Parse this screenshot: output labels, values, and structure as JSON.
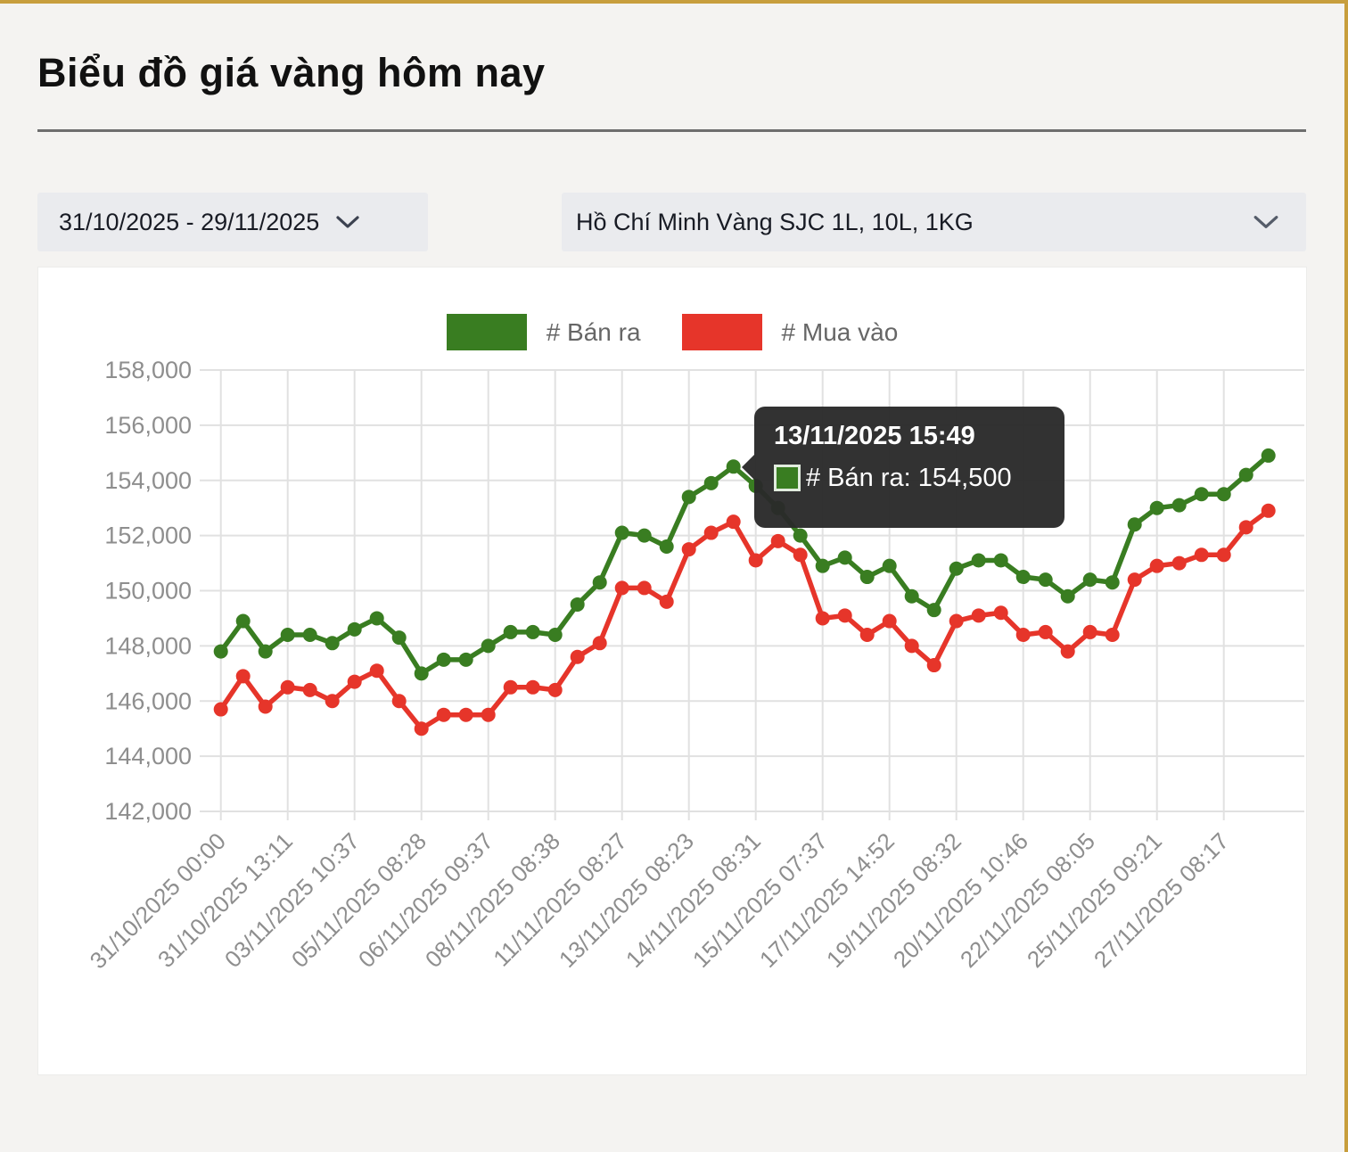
{
  "page": {
    "title": "Biểu đồ giá vàng hôm nay"
  },
  "controls": {
    "date_range": {
      "value": "31/10/2025 - 29/11/2025"
    },
    "market": {
      "value": "Hồ Chí Minh Vàng SJC 1L, 10L, 1KG"
    }
  },
  "chart_data": {
    "type": "line",
    "x_tick_labels": [
      "31/10/2025 00:00",
      "31/10/2025 13:11",
      "03/11/2025 10:37",
      "05/11/2025 08:28",
      "06/11/2025 09:37",
      "08/11/2025 08:38",
      "11/11/2025 08:27",
      "13/11/2025 08:23",
      "14/11/2025 08:31",
      "15/11/2025 07:37",
      "17/11/2025 14:52",
      "19/11/2025 08:32",
      "20/11/2025 10:46",
      "22/11/2025 08:05",
      "25/11/2025 09:21",
      "27/11/2025 08:17"
    ],
    "points_per_tick": 3,
    "ylim": [
      142000,
      158000
    ],
    "y_tick_step": 2000,
    "grid": true,
    "legend_position": "top",
    "series": [
      {
        "name": "# Bán ra",
        "key": "ban-ra",
        "color": "#397d21",
        "values": [
          147800,
          148900,
          147800,
          148400,
          148400,
          148100,
          148600,
          149000,
          148300,
          147000,
          147500,
          147500,
          148000,
          148500,
          148500,
          148400,
          149500,
          150300,
          152100,
          152000,
          151600,
          153400,
          153900,
          154500,
          153800,
          153000,
          152000,
          150900,
          151200,
          150500,
          150900,
          149800,
          149300,
          150800,
          151100,
          151100,
          150500,
          150400,
          149800,
          150400,
          150300,
          152400,
          153000,
          153100,
          153500,
          153500,
          154200,
          154900
        ]
      },
      {
        "name": "# Mua vào",
        "key": "mua-vao",
        "color": "#e6352a",
        "values": [
          145700,
          146900,
          145800,
          146500,
          146400,
          146000,
          146700,
          147100,
          146000,
          145000,
          145500,
          145500,
          145500,
          146500,
          146500,
          146400,
          147600,
          148100,
          150100,
          150100,
          149600,
          151500,
          152100,
          152500,
          151100,
          151800,
          151300,
          149000,
          149100,
          148400,
          148900,
          148000,
          147300,
          148900,
          149100,
          149200,
          148400,
          148500,
          147800,
          148500,
          148400,
          150400,
          150900,
          151000,
          151300,
          151300,
          152300,
          152900
        ]
      }
    ]
  },
  "tooltip": {
    "title": "13/11/2025 15:49",
    "series": "# Bán ra",
    "value": "154,500",
    "label": "# Bán ra: 154,500"
  },
  "colors": {
    "accent_gold": "#c79e3d",
    "green": "#397d21",
    "red": "#e6352a",
    "grid": "#e1e1e1",
    "tick_text": "#8e8e8e",
    "legend_text": "#666666",
    "tooltip_bg": "#2a2a2a",
    "select_bg": "#eaebee",
    "page_bg": "#f4f3f1",
    "panel_bg": "#ffffff"
  }
}
